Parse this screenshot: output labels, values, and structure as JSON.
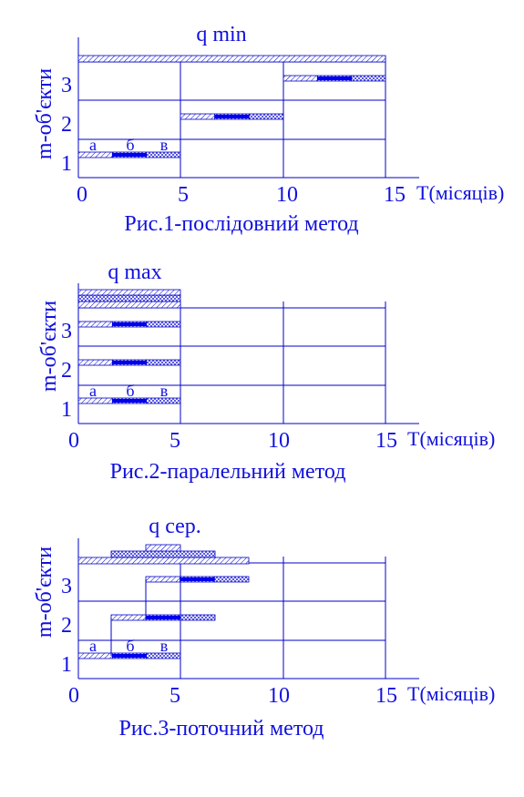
{
  "figures": [
    {
      "title": "q min",
      "y_label": "m-об'єкти",
      "rows": [
        "1",
        "2",
        "3"
      ],
      "stages": [
        "а",
        "б",
        "в"
      ],
      "x_ticks": [
        "0",
        "5",
        "10",
        "15"
      ],
      "x_label": "T(місяців)",
      "caption": "Рис.1-послідовний метод"
    },
    {
      "title": "q max",
      "y_label": "m-об'єкти",
      "rows": [
        "1",
        "2",
        "3"
      ],
      "stages": [
        "а",
        "б",
        "в"
      ],
      "x_ticks": [
        "0",
        "5",
        "10",
        "15"
      ],
      "x_label": "T(місяців)",
      "caption": "Рис.2-паралельний метод"
    },
    {
      "title": "q сер.",
      "y_label": "m-об'єкти",
      "rows": [
        "1",
        "2",
        "3"
      ],
      "stages": [
        "а",
        "б",
        "в"
      ],
      "x_ticks": [
        "0",
        "5",
        "10",
        "15"
      ],
      "x_label": "T(місяців)",
      "caption": "Рис.3-поточний метод"
    }
  ]
}
